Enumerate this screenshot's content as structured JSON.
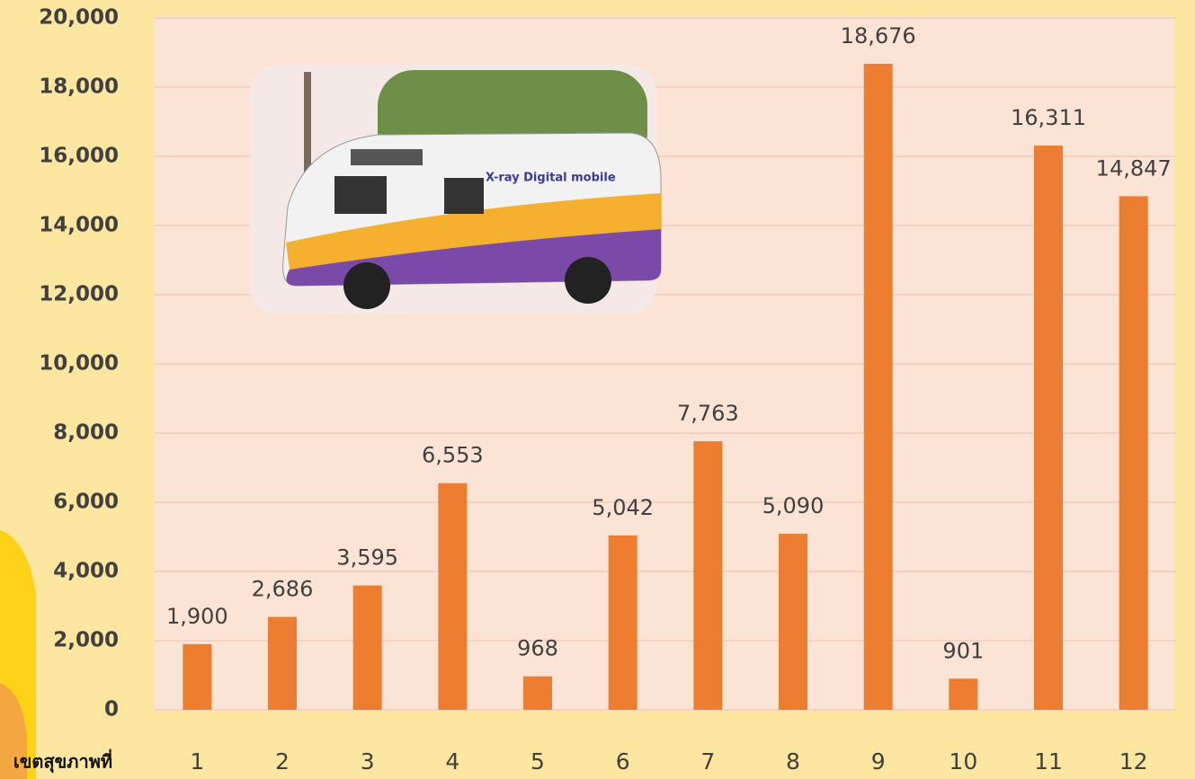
{
  "chart_data": {
    "type": "bar",
    "x_label": "เขตสุขภาพที่",
    "categories": [
      "1",
      "2",
      "3",
      "4",
      "5",
      "6",
      "7",
      "8",
      "9",
      "10",
      "11",
      "12"
    ],
    "values": [
      1900,
      2686,
      3595,
      6553,
      968,
      5042,
      7763,
      5090,
      18676,
      901,
      16311,
      14847
    ],
    "value_labels": [
      "1,900",
      "2,686",
      "3,595",
      "6,553",
      "968",
      "5,042",
      "7,763",
      "5,090",
      "18,676",
      "901",
      "16,311",
      "14,847"
    ],
    "color": "#ed7d31",
    "ylim": [
      0,
      20000
    ],
    "yticks": [
      0,
      {
        "value": 2000,
        "label": "2,000"
      },
      {
        "value": 4000,
        "label": "4,000"
      },
      {
        "value": 6000,
        "label": "6,000"
      },
      {
        "value": 8000,
        "label": "8,000"
      },
      {
        "value": 10000,
        "label": "10,000"
      },
      {
        "value": 12000,
        "label": "12,000"
      },
      {
        "value": 14000,
        "label": "14,000"
      },
      {
        "value": 16000,
        "label": "16,000"
      },
      {
        "value": 18000,
        "label": "18,000"
      },
      {
        "value": 20000,
        "label": "20,000"
      }
    ],
    "grid": true
  }
}
